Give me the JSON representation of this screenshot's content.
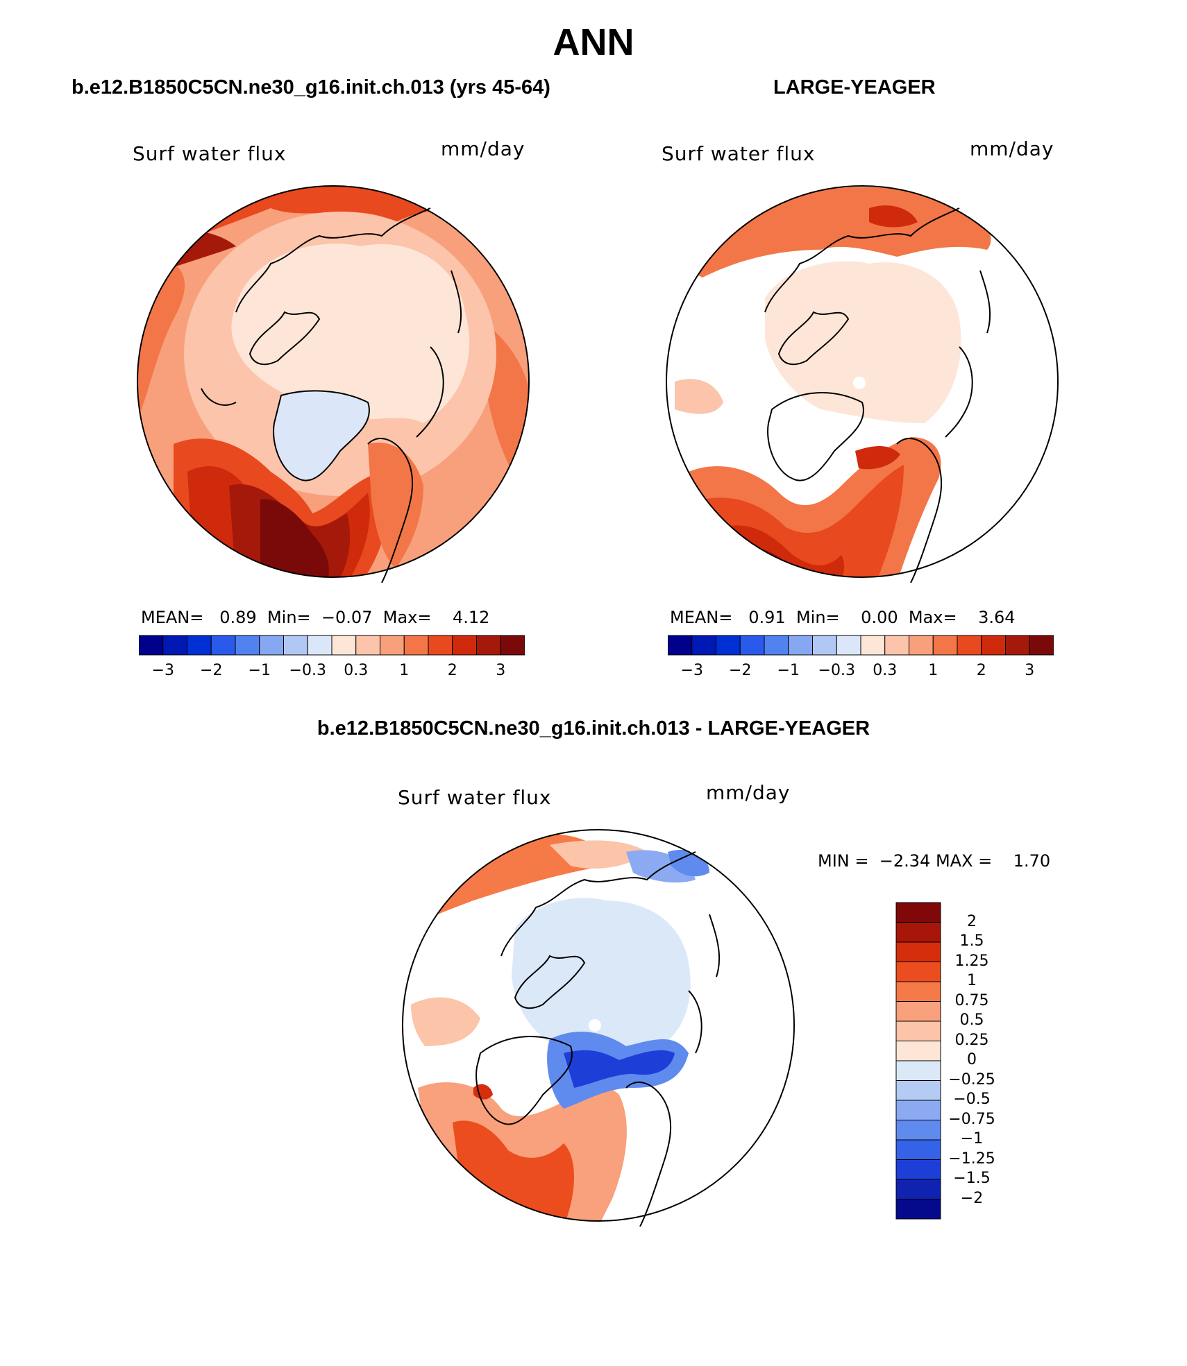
{
  "title": "ANN",
  "panels": [
    {
      "id": "case",
      "heading": "b.e12.B1850C5CN.ne30_g16.init.ch.013 (yrs 45-64)",
      "variable": "Surf water flux",
      "units": "mm/day",
      "stats": {
        "mean_label": "MEAN=",
        "mean": "0.89",
        "min_label": "Min=",
        "min": "−0.07",
        "max_label": "Max=",
        "max": "4.12"
      }
    },
    {
      "id": "obs",
      "heading": "LARGE-YEAGER",
      "variable": "Surf water flux",
      "units": "mm/day",
      "stats": {
        "mean_label": "MEAN=",
        "mean": "0.91",
        "min_label": "Min=",
        "min": "0.00",
        "max_label": "Max=",
        "max": "3.64"
      }
    },
    {
      "id": "diff",
      "heading": "b.e12.B1850C5CN.ne30_g16.init.ch.013 - LARGE-YEAGER",
      "variable": "Surf water flux",
      "units": "mm/day",
      "stats": {
        "min_label": "MIN =",
        "min": "−2.34",
        "max_label": "MAX =",
        "max": "1.70"
      }
    }
  ],
  "colorbar_top": {
    "colors": [
      "#00008c",
      "#0018b4",
      "#0030d4",
      "#2a5aec",
      "#5082f0",
      "#86a8f2",
      "#b2c8f4",
      "#dbe7f8",
      "#fde6d8",
      "#fbc4ab",
      "#f8a07c",
      "#f37648",
      "#e8491e",
      "#cf2a0c",
      "#a5190a",
      "#7a0a0a"
    ],
    "ticks": [
      "−3",
      "−2",
      "−1",
      "−0.3",
      "0.3",
      "1",
      "2",
      "3"
    ]
  },
  "colorbar_diff": {
    "colors": [
      "#800808",
      "#a8160a",
      "#d42e0c",
      "#ec4d1e",
      "#f67a48",
      "#f9a07c",
      "#fcc4a8",
      "#fde6d6",
      "#dbe8f8",
      "#b4cbf4",
      "#8caaf2",
      "#5f8bee",
      "#3563e8",
      "#1d3fd8",
      "#0f22b0",
      "#050a8c"
    ],
    "ticks": [
      "2",
      "1.5",
      "1.25",
      "1",
      "0.75",
      "0.5",
      "0.25",
      "0",
      "−0.25",
      "−0.5",
      "−0.75",
      "−1",
      "−1.25",
      "−1.5",
      "−2"
    ]
  },
  "map_colors": {
    "light_blue": "#dbe7f8",
    "cream": "#fde6d8",
    "peach": "#fbc4ab",
    "salmon": "#f8a07c",
    "orange": "#f37648",
    "red_orange": "#e8491e",
    "red": "#cf2a0c",
    "dark_red": "#a5190a",
    "maroon": "#7a0a0a",
    "blue": "#3563e8",
    "dark_blue": "#1d3fd8"
  }
}
